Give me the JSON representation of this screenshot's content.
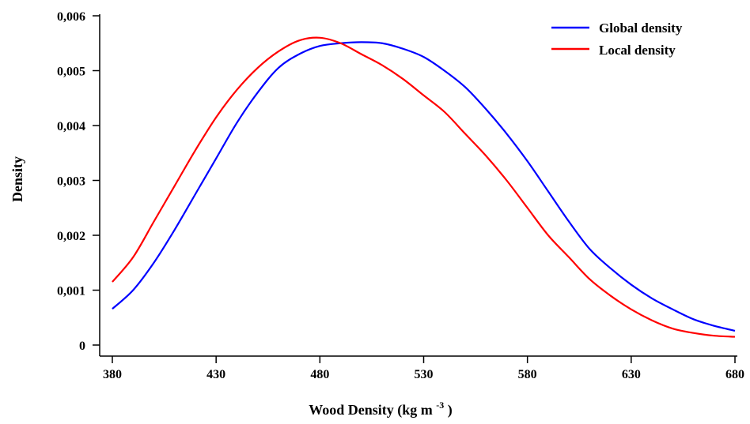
{
  "chart_data": {
    "type": "line",
    "xlabel": "Wood Density (kg m",
    "xlabel_superscript": "-3",
    "xlabel_suffix": ")",
    "ylabel": "Density",
    "xlim": [
      380,
      680
    ],
    "ylim": [
      0,
      0.006
    ],
    "x_ticks": [
      380,
      430,
      480,
      530,
      580,
      630,
      680
    ],
    "y_ticks": [
      0,
      0.001,
      0.002,
      0.003,
      0.004,
      0.005,
      0.006
    ],
    "x_tick_labels": [
      "380",
      "430",
      "480",
      "530",
      "580",
      "630",
      "680"
    ],
    "y_tick_labels": [
      "0",
      "0,001",
      "0,002",
      "0,003",
      "0,004",
      "0,005",
      "0,006"
    ],
    "grid": false,
    "legend_position": "top-right",
    "series": [
      {
        "name": "Global density",
        "color": "#0000ff",
        "x": [
          380,
          390,
          400,
          410,
          420,
          430,
          440,
          450,
          460,
          470,
          480,
          490,
          500,
          510,
          520,
          530,
          540,
          550,
          560,
          570,
          580,
          590,
          600,
          610,
          620,
          630,
          640,
          650,
          660,
          670,
          680
        ],
        "y": [
          0.00066,
          0.001,
          0.0015,
          0.0021,
          0.00275,
          0.0034,
          0.00405,
          0.0046,
          0.00505,
          0.0053,
          0.00545,
          0.0055,
          0.00552,
          0.0055,
          0.0054,
          0.00525,
          0.005,
          0.0047,
          0.0043,
          0.00385,
          0.00335,
          0.0028,
          0.00225,
          0.00175,
          0.0014,
          0.0011,
          0.00085,
          0.00065,
          0.00047,
          0.00035,
          0.00026
        ]
      },
      {
        "name": "Local density",
        "color": "#ff0000",
        "x": [
          380,
          390,
          400,
          410,
          420,
          430,
          440,
          450,
          460,
          470,
          480,
          490,
          500,
          510,
          520,
          530,
          540,
          550,
          560,
          570,
          580,
          590,
          600,
          610,
          620,
          630,
          640,
          650,
          660,
          670,
          680
        ],
        "y": [
          0.00115,
          0.0016,
          0.00225,
          0.0029,
          0.00355,
          0.00415,
          0.00465,
          0.00505,
          0.00535,
          0.00555,
          0.0056,
          0.0055,
          0.0053,
          0.0051,
          0.00485,
          0.00455,
          0.00425,
          0.00385,
          0.00345,
          0.003,
          0.0025,
          0.002,
          0.0016,
          0.0012,
          0.0009,
          0.00065,
          0.00045,
          0.0003,
          0.00022,
          0.00017,
          0.00015
        ]
      }
    ]
  }
}
